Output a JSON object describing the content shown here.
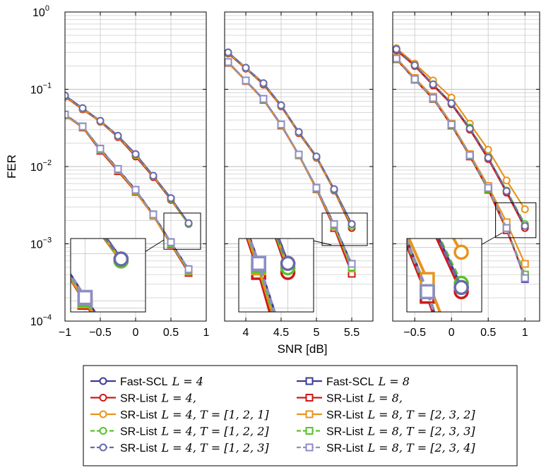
{
  "chart_data": {
    "type": "line",
    "y_scale": "log",
    "ylabel": "FER",
    "xlabel": "SNR [dB]",
    "ylim": [
      0.0001,
      1
    ],
    "grid": true,
    "legend_position": "bottom",
    "y_ticks": [
      {
        "value": 1,
        "base": "10",
        "exp": "0"
      },
      {
        "value": 0.1,
        "base": "10",
        "exp": "−1"
      },
      {
        "value": 0.01,
        "base": "10",
        "exp": "−2"
      },
      {
        "value": 0.001,
        "base": "10",
        "exp": "−3"
      },
      {
        "value": 0.0001,
        "base": "10",
        "exp": "−4"
      }
    ],
    "legend": [
      {
        "name": "Fast-SCL",
        "math": "L = 4",
        "color": "#3b3b99",
        "marker": "circle",
        "dash": false
      },
      {
        "name": "Fast-SCL",
        "math": "L = 8",
        "color": "#3b3b99",
        "marker": "square",
        "dash": false
      },
      {
        "name": "SR-List",
        "math": "L = 4,",
        "color": "#cc1a1a",
        "marker": "circle",
        "dash": false
      },
      {
        "name": "SR-List",
        "math": "L = 8,",
        "color": "#cc1a1a",
        "marker": "square",
        "dash": false
      },
      {
        "name": "SR-List",
        "math": "L = 4, T = [1, 2, 1]",
        "color": "#e8941e",
        "marker": "circle",
        "dash": false
      },
      {
        "name": "SR-List",
        "math": "L = 8, T = [2, 3, 2]",
        "color": "#e8941e",
        "marker": "square",
        "dash": false
      },
      {
        "name": "SR-List",
        "math": "L = 4, T = [1, 2, 2]",
        "color": "#59c22b",
        "marker": "circle",
        "dash": true
      },
      {
        "name": "SR-List",
        "math": "L = 8, T = [2, 3, 3]",
        "color": "#59c22b",
        "marker": "square",
        "dash": true
      },
      {
        "name": "SR-List",
        "math": "L = 4, T = [1, 2, 3]",
        "color": "#6a6aa8",
        "marker": "circle",
        "dash": true
      },
      {
        "name": "SR-List",
        "math": "L = 8, T = [2, 3, 4]",
        "color": "#8e8ec4",
        "marker": "square",
        "dash": true
      }
    ],
    "panels": [
      {
        "xlim": [
          -1,
          1
        ],
        "xticks": [
          {
            "v": -1,
            "t": "−1"
          },
          {
            "v": -0.5,
            "t": "−0.5"
          },
          {
            "v": 0,
            "t": "0"
          },
          {
            "v": 0.5,
            "t": "0.5"
          },
          {
            "v": 1,
            "t": "1"
          }
        ],
        "series": [
          {
            "legend": 0,
            "x": [
              -1,
              -0.75,
              -0.5,
              -0.25,
              0,
              0.25,
              0.5,
              0.75
            ],
            "y": [
              0.083,
              0.057,
              0.039,
              0.025,
              0.0145,
              0.0076,
              0.0039,
              0.00185
            ]
          },
          {
            "legend": 2,
            "x": [
              -1,
              -0.75,
              -0.5,
              -0.25,
              0,
              0.25,
              0.5,
              0.75
            ],
            "y": [
              0.08,
              0.055,
              0.038,
              0.024,
              0.0135,
              0.0073,
              0.0037,
              0.0018
            ]
          },
          {
            "legend": 4,
            "x": [
              -1,
              -0.75,
              -0.5,
              -0.25,
              0,
              0.25,
              0.5,
              0.75
            ],
            "y": [
              0.081,
              0.056,
              0.0385,
              0.0245,
              0.014,
              0.0075,
              0.0038,
              0.0018
            ]
          },
          {
            "legend": 6,
            "x": [
              -1,
              -0.75,
              -0.5,
              -0.25,
              0,
              0.25,
              0.5,
              0.75
            ],
            "y": [
              0.082,
              0.0565,
              0.039,
              0.025,
              0.0142,
              0.0075,
              0.0038,
              0.0018
            ]
          },
          {
            "legend": 8,
            "x": [
              -1,
              -0.75,
              -0.5,
              -0.25,
              0,
              0.25,
              0.5,
              0.75
            ],
            "y": [
              0.083,
              0.057,
              0.039,
              0.025,
              0.0145,
              0.0076,
              0.0039,
              0.00185
            ]
          },
          {
            "legend": 1,
            "x": [
              -1,
              -0.75,
              -0.5,
              -0.25,
              0,
              0.25,
              0.5,
              0.75
            ],
            "y": [
              0.047,
              0.033,
              0.017,
              0.0093,
              0.005,
              0.0024,
              0.00105,
              0.00047
            ]
          },
          {
            "legend": 3,
            "x": [
              -1,
              -0.75,
              -0.5,
              -0.25,
              0,
              0.25,
              0.5,
              0.75
            ],
            "y": [
              0.046,
              0.032,
              0.016,
              0.0087,
              0.0047,
              0.0023,
              0.00098,
              0.00042
            ]
          },
          {
            "legend": 5,
            "x": [
              -1,
              -0.75,
              -0.5,
              -0.25,
              0,
              0.25,
              0.5,
              0.75
            ],
            "y": [
              0.046,
              0.0325,
              0.0165,
              0.009,
              0.0048,
              0.0023,
              0.001,
              0.00044
            ]
          },
          {
            "legend": 7,
            "x": [
              -1,
              -0.75,
              -0.5,
              -0.25,
              0,
              0.25,
              0.5,
              0.75
            ],
            "y": [
              0.0465,
              0.033,
              0.0167,
              0.0092,
              0.0049,
              0.0024,
              0.00102,
              0.00045
            ]
          },
          {
            "legend": 9,
            "x": [
              -1,
              -0.75,
              -0.5,
              -0.25,
              0,
              0.25,
              0.5,
              0.75
            ],
            "y": [
              0.047,
              0.033,
              0.017,
              0.0093,
              0.005,
              0.0024,
              0.00105,
              0.00047
            ]
          }
        ]
      },
      {
        "xlim": [
          3.7,
          5.8
        ],
        "xticks": [
          {
            "v": 4,
            "t": "4"
          },
          {
            "v": 4.5,
            "t": "4.5"
          },
          {
            "v": 5,
            "t": "5"
          },
          {
            "v": 5.5,
            "t": "5.5"
          }
        ],
        "series": [
          {
            "legend": 0,
            "x": [
              3.75,
              4,
              4.25,
              4.5,
              4.75,
              5,
              5.25,
              5.5
            ],
            "y": [
              0.3,
              0.19,
              0.12,
              0.062,
              0.028,
              0.0135,
              0.0051,
              0.0018
            ]
          },
          {
            "legend": 2,
            "x": [
              3.75,
              4,
              4.25,
              4.5,
              4.75,
              5,
              5.25,
              5.5
            ],
            "y": [
              0.29,
              0.185,
              0.115,
              0.06,
              0.027,
              0.013,
              0.0049,
              0.0016
            ]
          },
          {
            "legend": 4,
            "x": [
              3.75,
              4,
              4.25,
              4.5,
              4.75,
              5,
              5.25,
              5.5
            ],
            "y": [
              0.295,
              0.188,
              0.118,
              0.061,
              0.0275,
              0.0132,
              0.005,
              0.0017
            ]
          },
          {
            "legend": 6,
            "x": [
              3.75,
              4,
              4.25,
              4.5,
              4.75,
              5,
              5.25,
              5.5
            ],
            "y": [
              0.297,
              0.189,
              0.119,
              0.0615,
              0.0278,
              0.0134,
              0.005,
              0.0017
            ]
          },
          {
            "legend": 8,
            "x": [
              3.75,
              4,
              4.25,
              4.5,
              4.75,
              5,
              5.25,
              5.5
            ],
            "y": [
              0.3,
              0.19,
              0.12,
              0.062,
              0.028,
              0.0135,
              0.0051,
              0.0018
            ]
          },
          {
            "legend": 1,
            "x": [
              3.75,
              4,
              4.25,
              4.5,
              4.75,
              5,
              5.25,
              5.5
            ],
            "y": [
              0.225,
              0.13,
              0.075,
              0.035,
              0.0143,
              0.0053,
              0.0018,
              0.00055
            ]
          },
          {
            "legend": 3,
            "x": [
              3.75,
              4,
              4.25,
              4.5,
              4.75,
              5,
              5.25,
              5.5
            ],
            "y": [
              0.22,
              0.128,
              0.073,
              0.034,
              0.014,
              0.0051,
              0.0016,
              0.00041
            ]
          },
          {
            "legend": 5,
            "x": [
              3.75,
              4,
              4.25,
              4.5,
              4.75,
              5,
              5.25,
              5.5
            ],
            "y": [
              0.222,
              0.129,
              0.074,
              0.0345,
              0.0141,
              0.0052,
              0.0017,
              0.00048
            ]
          },
          {
            "legend": 7,
            "x": [
              3.75,
              4,
              4.25,
              4.5,
              4.75,
              5,
              5.25,
              5.5
            ],
            "y": [
              0.224,
              0.13,
              0.0745,
              0.0348,
              0.0142,
              0.0052,
              0.00175,
              0.0005
            ]
          },
          {
            "legend": 9,
            "x": [
              3.75,
              4,
              4.25,
              4.5,
              4.75,
              5,
              5.25,
              5.5
            ],
            "y": [
              0.225,
              0.13,
              0.075,
              0.035,
              0.0143,
              0.0053,
              0.0018,
              0.00055
            ]
          }
        ]
      },
      {
        "xlim": [
          -0.8,
          1.2
        ],
        "xticks": [
          {
            "v": -0.5,
            "t": "−0.5"
          },
          {
            "v": 0,
            "t": "0"
          },
          {
            "v": 0.5,
            "t": "0.5"
          },
          {
            "v": 1,
            "t": "1"
          }
        ],
        "series": [
          {
            "legend": 0,
            "x": [
              -0.75,
              -0.5,
              -0.25,
              0,
              0.25,
              0.5,
              0.75,
              1
            ],
            "y": [
              0.33,
              0.205,
              0.115,
              0.066,
              0.031,
              0.013,
              0.0048,
              0.0017
            ]
          },
          {
            "legend": 2,
            "x": [
              -0.75,
              -0.5,
              -0.25,
              0,
              0.25,
              0.5,
              0.75,
              1
            ],
            "y": [
              0.32,
              0.2,
              0.112,
              0.064,
              0.03,
              0.0125,
              0.0046,
              0.0016
            ]
          },
          {
            "legend": 4,
            "x": [
              -0.75,
              -0.5,
              -0.25,
              0,
              0.25,
              0.5,
              0.75,
              1
            ],
            "y": [
              0.34,
              0.215,
              0.13,
              0.078,
              0.036,
              0.0165,
              0.0066,
              0.0028
            ]
          },
          {
            "legend": 6,
            "x": [
              -0.75,
              -0.5,
              -0.25,
              0,
              0.25,
              0.5,
              0.75,
              1
            ],
            "y": [
              0.33,
              0.205,
              0.116,
              0.066,
              0.032,
              0.0132,
              0.0049,
              0.0018
            ]
          },
          {
            "legend": 8,
            "x": [
              -0.75,
              -0.5,
              -0.25,
              0,
              0.25,
              0.5,
              0.75,
              1
            ],
            "y": [
              0.33,
              0.205,
              0.116,
              0.066,
              0.031,
              0.013,
              0.0048,
              0.0017
            ]
          },
          {
            "legend": 1,
            "x": [
              -0.75,
              -0.5,
              -0.25,
              0,
              0.25,
              0.5,
              0.75,
              1
            ],
            "y": [
              0.25,
              0.135,
              0.077,
              0.035,
              0.014,
              0.0053,
              0.0016,
              0.00035
            ]
          },
          {
            "legend": 3,
            "x": [
              -0.75,
              -0.5,
              -0.25,
              0,
              0.25,
              0.5,
              0.75,
              1
            ],
            "y": [
              0.245,
              0.133,
              0.075,
              0.034,
              0.0135,
              0.005,
              0.0015,
              0.00038
            ]
          },
          {
            "legend": 5,
            "x": [
              -0.75,
              -0.5,
              -0.25,
              0,
              0.25,
              0.5,
              0.75,
              1
            ],
            "y": [
              0.255,
              0.14,
              0.08,
              0.036,
              0.0145,
              0.0056,
              0.0019,
              0.00055
            ]
          },
          {
            "legend": 7,
            "x": [
              -0.75,
              -0.5,
              -0.25,
              0,
              0.25,
              0.5,
              0.75,
              1
            ],
            "y": [
              0.248,
              0.134,
              0.076,
              0.0345,
              0.0138,
              0.0051,
              0.0016,
              0.0004
            ]
          },
          {
            "legend": 9,
            "x": [
              -0.75,
              -0.5,
              -0.25,
              0,
              0.25,
              0.5,
              0.75,
              1
            ],
            "y": [
              0.25,
              0.135,
              0.077,
              0.035,
              0.014,
              0.0053,
              0.0016,
              0.00036
            ]
          }
        ]
      }
    ]
  }
}
